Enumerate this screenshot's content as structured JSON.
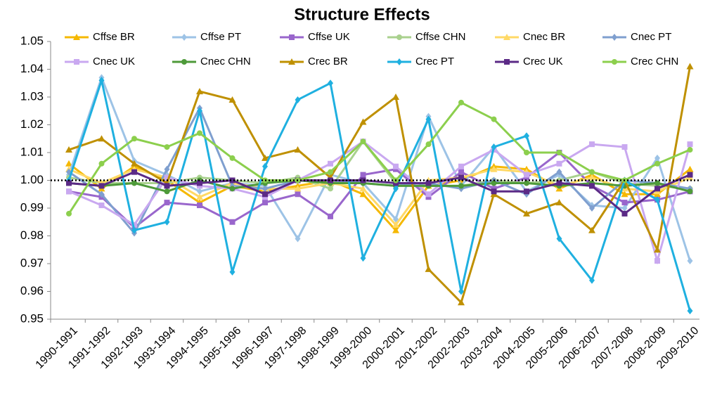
{
  "chart_data": {
    "type": "line",
    "title": "Structure Effects",
    "categories": [
      "1990-1991",
      "1991-1992",
      "1992-1993",
      "1993-1994",
      "1994-1995",
      "1995-1996",
      "1996-1997",
      "1997-1998",
      "1998-1999",
      "1999-2000",
      "2000-2001",
      "2001-2002",
      "2002-2003",
      "2003-2004",
      "2004-2005",
      "2005-2006",
      "2006-2007",
      "2007-2008",
      "2008-2009",
      "2009-2010"
    ],
    "ylim": [
      0.95,
      1.05
    ],
    "yticks": [
      0.95,
      0.96,
      0.97,
      0.98,
      0.99,
      {
        "value": 1,
        "label": "1.00"
      },
      1.01,
      1.02,
      1.03,
      1.04,
      1.05
    ],
    "reference_line": 1,
    "series": [
      {
        "name": "Cffse BR",
        "color": "#f5b800",
        "marker": "triangle",
        "values": [
          1.006,
          0.997,
          1.005,
          1.0,
          0.992,
          0.998,
          0.996,
          0.998,
          1.0,
          0.995,
          0.982,
          0.998,
          1.0,
          1.005,
          1.004,
          0.997,
          1.002,
          0.995,
          0.995,
          1.004
        ]
      },
      {
        "name": "Cffse PT",
        "color": "#9dc3e6",
        "marker": "diamond",
        "values": [
          1.002,
          1.037,
          1.007,
          1.002,
          0.996,
          0.999,
          0.998,
          0.979,
          1.002,
          0.999,
          0.986,
          1.023,
          0.998,
          1.012,
          0.996,
          1.002,
          0.991,
          0.99,
          1.008,
          0.971
        ]
      },
      {
        "name": "Cffse UK",
        "color": "#9966cc",
        "marker": "square",
        "values": [
          0.996,
          0.994,
          0.983,
          0.992,
          0.991,
          0.985,
          0.992,
          0.995,
          0.987,
          1.002,
          1.004,
          0.994,
          1.003,
          0.997,
          1.001,
          1.01,
          0.998,
          0.992,
          0.993,
          0.996
        ]
      },
      {
        "name": "Cffse CHN",
        "color": "#a9d18e",
        "marker": "circle",
        "values": [
          1.001,
          0.999,
          0.999,
          0.999,
          1.001,
          1.0,
          0.999,
          1.001,
          0.997,
          1.014,
          0.999,
          0.998,
          0.998,
          1.0,
          0.999,
          1.0,
          1.003,
          0.999,
          0.998,
          0.997
        ]
      },
      {
        "name": "Cnec BR",
        "color": "#ffd966",
        "marker": "triangle",
        "values": [
          1.004,
          0.999,
          1.004,
          1.001,
          0.994,
          0.999,
          0.997,
          0.997,
          0.999,
          0.997,
          0.984,
          1.0,
          1.001,
          1.004,
          1.003,
          0.998,
          1.001,
          0.997,
          0.996,
          1.001
        ]
      },
      {
        "name": "Cnec PT",
        "color": "#7f9fcf",
        "marker": "diamond",
        "values": [
          1.003,
          0.995,
          0.981,
          1.004,
          1.026,
          0.998,
          0.997,
          1.0,
          1.0,
          0.999,
          0.998,
          0.999,
          0.997,
          1.0,
          0.995,
          1.003,
          0.99,
          1.0,
          0.999,
          0.997
        ]
      },
      {
        "name": "Cnec UK",
        "color": "#c9a8f0",
        "marker": "square",
        "values": [
          0.996,
          0.991,
          0.984,
          1.001,
          0.998,
          0.997,
          0.994,
          1.0,
          1.006,
          1.014,
          1.005,
          0.995,
          1.005,
          1.011,
          1.002,
          1.006,
          1.013,
          1.012,
          0.971,
          1.013
        ]
      },
      {
        "name": "Cnec CHN",
        "color": "#4e9a3a",
        "marker": "circle",
        "values": [
          0.999,
          0.998,
          0.999,
          0.996,
          1.0,
          0.997,
          0.999,
          1.0,
          0.999,
          0.999,
          0.998,
          0.998,
          0.998,
          0.999,
          0.999,
          0.998,
          0.999,
          0.998,
          0.999,
          0.996
        ]
      },
      {
        "name": "Crec BR",
        "color": "#bf9000",
        "marker": "triangle",
        "values": [
          1.011,
          1.015,
          1.006,
          0.999,
          1.032,
          1.029,
          1.008,
          1.011,
          1.001,
          1.021,
          1.03,
          0.968,
          0.956,
          0.995,
          0.988,
          0.992,
          0.982,
          1.0,
          0.975,
          1.041
        ]
      },
      {
        "name": "Crec PT",
        "color": "#1fb0e0",
        "marker": "diamond",
        "values": [
          1.0,
          1.036,
          0.982,
          0.985,
          1.025,
          0.967,
          1.005,
          1.029,
          1.035,
          0.972,
          0.997,
          1.022,
          0.96,
          1.012,
          1.016,
          0.979,
          0.964,
          1.0,
          0.993,
          0.953
        ]
      },
      {
        "name": "Crec UK",
        "color": "#5b2a86",
        "marker": "square",
        "values": [
          0.999,
          0.998,
          1.003,
          0.998,
          0.999,
          1.0,
          0.995,
          1.0,
          1.0,
          1.0,
          0.999,
          0.999,
          1.001,
          0.996,
          0.996,
          0.999,
          0.998,
          0.988,
          0.997,
          1.002
        ]
      },
      {
        "name": "Crec CHN",
        "color": "#8ccf4d",
        "marker": "circle",
        "values": [
          0.988,
          1.006,
          1.015,
          1.012,
          1.017,
          1.008,
          1.0,
          1.0,
          1.003,
          1.014,
          1.0,
          1.013,
          1.028,
          1.022,
          1.01,
          1.01,
          1.003,
          1.0,
          1.006,
          1.011
        ]
      }
    ]
  }
}
